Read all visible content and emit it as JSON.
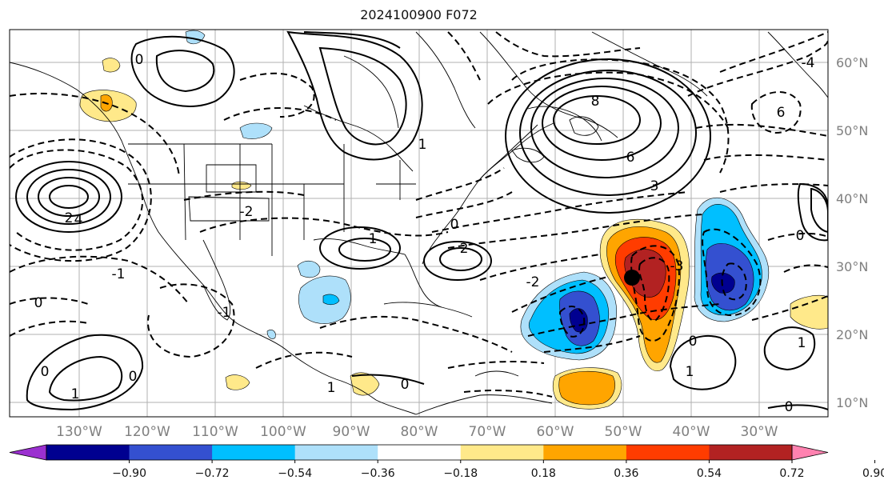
{
  "title": "2024100900 F072",
  "longitude_labels": [
    "130°W",
    "120°W",
    "110°W",
    "100°W",
    "90°W",
    "80°W",
    "70°W",
    "60°W",
    "50°W",
    "40°W",
    "30°W"
  ],
  "latitude_labels": [
    "60°N",
    "50°N",
    "40°N",
    "30°N",
    "20°N",
    "10°N"
  ],
  "contour_labels": [
    "-1",
    "0",
    "2",
    "4",
    "6",
    "8",
    "3",
    "1",
    "-2",
    "-3",
    "-4"
  ],
  "colorbar": {
    "ticks": [
      "−0.90",
      "−0.72",
      "−0.54",
      "−0.36",
      "−0.18",
      "0.18",
      "0.36",
      "0.54",
      "0.72",
      "0.90"
    ],
    "colors": [
      "#9b30d0",
      "#000090",
      "#3450d0",
      "#00bfff",
      "#aee0fa",
      "#ffffff",
      "#ffe98a",
      "#ffa500",
      "#ff3c00",
      "#b22222",
      "#ff82b0"
    ]
  },
  "fill_colors": {
    "neg1": "#aee0fa",
    "neg2": "#00bfff",
    "neg3": "#3450d0",
    "neg4": "#000090",
    "pos1": "#ffe98a",
    "pos2": "#ffa500",
    "pos3": "#ff3c00",
    "pos4": "#b22222",
    "storm_marker": "#000000"
  }
}
